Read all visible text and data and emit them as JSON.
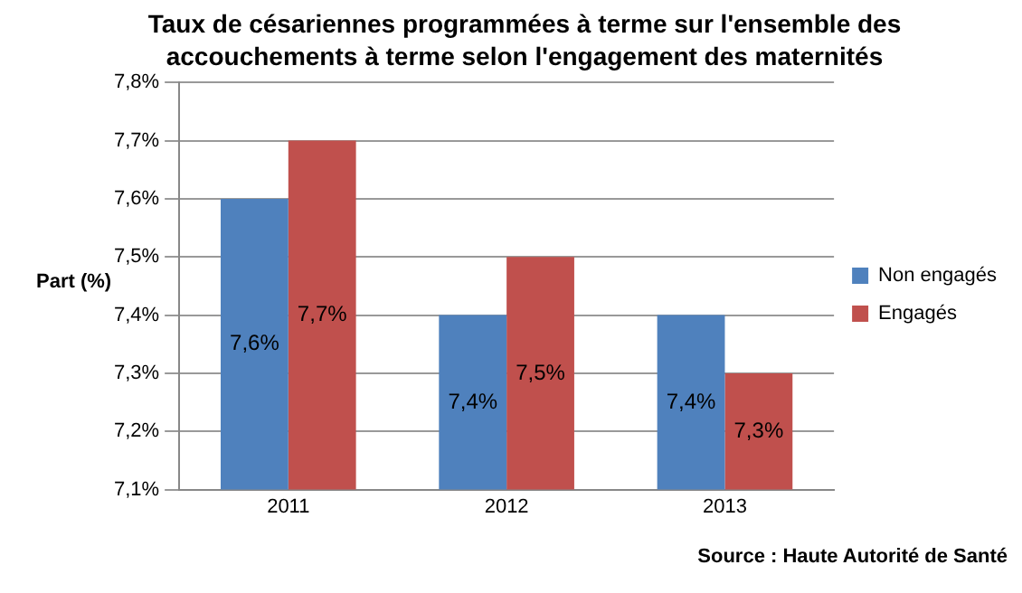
{
  "chart_data": {
    "type": "bar",
    "title": "Taux de césariennes programmées à terme sur  l'ensemble des accouchements à terme selon l'engagement des maternités",
    "ylabel": "Part (%)",
    "categories": [
      "2011",
      "2012",
      "2013"
    ],
    "series": [
      {
        "name": "Non engagés",
        "color": "#4f81bd",
        "values": [
          7.6,
          7.4,
          7.4
        ],
        "value_labels": [
          "7,6%",
          "7,4%",
          "7,4%"
        ]
      },
      {
        "name": "Engagés",
        "color": "#c0504d",
        "values": [
          7.7,
          7.5,
          7.3
        ],
        "value_labels": [
          "7,7%",
          "7,5%",
          "7,3%"
        ]
      }
    ],
    "ylim": [
      7.1,
      7.8
    ],
    "yticks": [
      {
        "value": 7.1,
        "label": "7,1%"
      },
      {
        "value": 7.2,
        "label": "7,2%"
      },
      {
        "value": 7.3,
        "label": "7,3%"
      },
      {
        "value": 7.4,
        "label": "7,4%"
      },
      {
        "value": 7.5,
        "label": "7,5%"
      },
      {
        "value": 7.6,
        "label": "7,6%"
      },
      {
        "value": 7.7,
        "label": "7,7%"
      },
      {
        "value": 7.8,
        "label": "7,8%"
      }
    ],
    "grid": "y",
    "legend": "right",
    "annotations": [
      "Source : Haute Autorité de Santé"
    ]
  }
}
